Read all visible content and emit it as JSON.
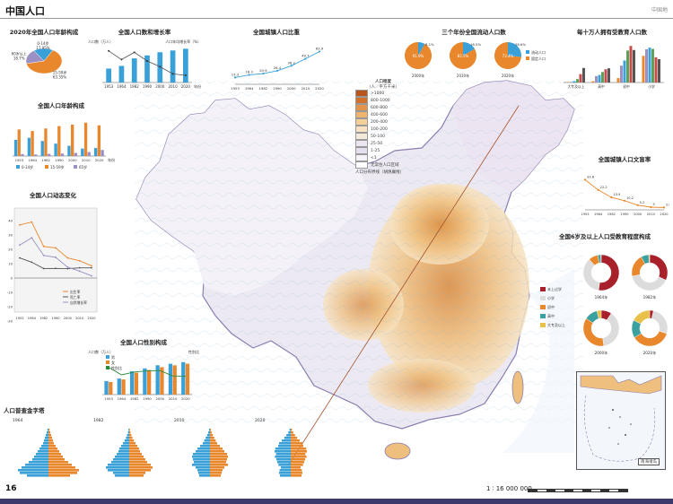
{
  "header": {
    "title": "中国人口",
    "brand": "中国地"
  },
  "footer": {
    "page_number": "16",
    "scale": "1 ∶ 16 000 000"
  },
  "panels": {
    "age_2020": {
      "title": "2020年全国人口年龄构成",
      "labels": [
        "0-14岁",
        "15-59岁",
        "60岁以上"
      ]
    },
    "growth": {
      "title": "全国人口数和增长率",
      "yl": "人口数（万人）",
      "yr": "人口年均增长率（%）",
      "xunit": "年份"
    },
    "urban": {
      "title": "全国城镇人口比重"
    },
    "migrant": {
      "title": "三个年份全国流动人口数",
      "years": [
        "2000年",
        "2010年",
        "2020年"
      ],
      "legend": [
        "流动人口",
        "固定人口"
      ]
    },
    "edu100k": {
      "title": "每十万人拥有受教育人口数",
      "cats": [
        "大专及以上",
        "高中",
        "初中",
        "小学"
      ]
    },
    "age_struct": {
      "title": "全国人口年龄构成",
      "legend": [
        "0-14岁",
        "15-59岁",
        "65岁"
      ],
      "xunit": "年份"
    },
    "dynamics": {
      "title": "全国人口动态变化",
      "legend": [
        "出生率",
        "死亡率",
        "自然增长率"
      ]
    },
    "sex": {
      "title": "全国人口性别构成",
      "yl": "人口数（万人）",
      "yr": "性别比",
      "legend": [
        "男",
        "女",
        "性别比"
      ]
    },
    "pyramid": {
      "title": "人口普查金字塔",
      "years": [
        "1964",
        "1982",
        "2010",
        "2020"
      ]
    },
    "illit": {
      "title": "全国城镇人口文盲率"
    },
    "edu6": {
      "title": "全国6岁及以上人口受教育程度构成",
      "legend": [
        "未上过学",
        "小学",
        "初中",
        "高中",
        "大专及以上"
      ],
      "years": [
        "1964年",
        "1982年",
        "2000年",
        "2020年"
      ]
    },
    "map_legend": {
      "title": "人口密度",
      "unit": "（人／平方千米）",
      "classes": [
        ">1000",
        "800-1000",
        "600-800",
        "400-600",
        "200-400",
        "100-200",
        "50-100",
        "25-50",
        "1-25",
        "<1",
        "无常住人口区域"
      ],
      "line": "人口分布界线（胡焕庸线）"
    },
    "inset": {
      "label": "南海诸岛"
    }
  },
  "chart_data": [
    {
      "type": "pie",
      "title": "2020年全国人口年龄构成",
      "categories": [
        "0-14岁",
        "15-59岁",
        "60岁以上"
      ],
      "values": [
        17.95,
        63.35,
        18.7
      ]
    },
    {
      "type": "bar",
      "title": "全国人口数和增长率",
      "categories": [
        "1953",
        "1964",
        "1982",
        "1990",
        "2000",
        "2010",
        "2020"
      ],
      "series": [
        {
          "name": "人口数",
          "values": [
            58260,
            69458,
            100818,
            113368,
            126583,
            133972,
            141178
          ]
        },
        {
          "name": "年均增长率",
          "values": [
            2.2,
            1.6,
            2.1,
            1.5,
            1.1,
            0.6,
            0.5
          ]
        }
      ]
    },
    {
      "type": "line",
      "title": "全国城镇人口比重",
      "categories": [
        "1953",
        "1964",
        "1982",
        "1990",
        "2000",
        "2010",
        "2020"
      ],
      "values": [
        13.3,
        18.3,
        20.9,
        26.4,
        36.2,
        49.7,
        63.9
      ]
    },
    {
      "type": "pie",
      "title": "三个年份全国流动人口数",
      "categories": [
        "2000年",
        "2010年",
        "2020年"
      ],
      "series": [
        {
          "name": "流动人口",
          "values": [
            8.1,
            16.5,
            26.6
          ]
        },
        {
          "name": "固定人口",
          "values": [
            91.9,
            83.5,
            73.4
          ]
        }
      ]
    },
    {
      "type": "bar",
      "title": "每十万人拥有受教育人口数",
      "categories": [
        "大专及以上",
        "高中",
        "初中",
        "小学"
      ],
      "series": [
        {
          "name": "1964",
          "values": [
            416,
            1319,
            4680,
            28330
          ]
        },
        {
          "name": "1982",
          "values": [
            615,
            6779,
            17892,
            35237
          ]
        },
        {
          "name": "1990",
          "values": [
            1422,
            8039,
            23344,
            37057
          ]
        },
        {
          "name": "2000",
          "values": [
            3611,
            11146,
            33961,
            35701
          ]
        },
        {
          "name": "2010",
          "values": [
            8930,
            14032,
            38788,
            26779
          ]
        },
        {
          "name": "2020",
          "values": [
            15467,
            15088,
            34507,
            24767
          ]
        }
      ]
    },
    {
      "type": "bar",
      "title": "全国人口年龄构成",
      "categories": [
        "1953",
        "1964",
        "1982",
        "1990",
        "2000",
        "2010",
        "2020"
      ],
      "series": [
        {
          "name": "0-14岁",
          "values": [
            36.3,
            40.7,
            33.6,
            27.7,
            22.9,
            16.6,
            17.9
          ]
        },
        {
          "name": "15-59岁",
          "values": [
            59.3,
            55.8,
            61.5,
            66.7,
            70.1,
            74.5,
            68.6
          ]
        },
        {
          "name": "65岁",
          "values": [
            4.4,
            3.5,
            4.9,
            5.6,
            7.0,
            8.9,
            13.5
          ]
        }
      ]
    },
    {
      "type": "line",
      "title": "全国人口动态变化",
      "categories": [
        "1953",
        "1964",
        "1982",
        "1990",
        "2000",
        "2010",
        "2020"
      ],
      "series": [
        {
          "name": "出生率",
          "values": [
            37,
            39,
            22,
            21,
            14,
            12,
            8.5
          ]
        },
        {
          "name": "死亡率",
          "values": [
            14,
            11,
            6.6,
            6.7,
            6.5,
            7.1,
            7.1
          ]
        },
        {
          "name": "自然增长率",
          "values": [
            23,
            28,
            15.7,
            14.4,
            7.6,
            4.8,
            1.5
          ]
        }
      ]
    },
    {
      "type": "bar",
      "title": "全国人口性别构成",
      "categories": [
        "1953",
        "1964",
        "1982",
        "1990",
        "2000",
        "2010",
        "2020"
      ],
      "series": [
        {
          "name": "男",
          "values": [
            30190,
            35652,
            51944,
            58495,
            65355,
            68685,
            72334
          ]
        },
        {
          "name": "女",
          "values": [
            28070,
            33806,
            48874,
            54873,
            61228,
            65287,
            68844
          ]
        },
        {
          "name": "性别比",
          "values": [
            107.6,
            105.5,
            106.3,
            106.6,
            106.7,
            105.2,
            105.1
          ]
        }
      ]
    },
    {
      "type": "line",
      "title": "全国城镇人口文盲率",
      "categories": [
        "1953",
        "1964",
        "1982",
        "1990",
        "2000",
        "2010",
        "2020"
      ],
      "values": [
        33.6,
        22.2,
        13.9,
        10.2,
        5.2,
        3.0,
        2.6
      ]
    },
    {
      "type": "pie",
      "title": "全国6岁及以上人口受教育程度构成",
      "categories": [
        "未上过学",
        "小学",
        "初中",
        "高中",
        "大专及以上"
      ],
      "series": [
        {
          "name": "1964年",
          "values": [
            52.4,
            35.9,
            8.6,
            2.7,
            0.4
          ]
        },
        {
          "name": "1982年",
          "values": [
            31.9,
            39.9,
            20.4,
            7.0,
            0.8
          ]
        },
        {
          "name": "2000年",
          "values": [
            9.5,
            38.2,
            36.5,
            11.9,
            3.9
          ]
        },
        {
          "name": "2020年",
          "values": [
            3.4,
            26.4,
            36.5,
            16.1,
            17.6
          ]
        }
      ]
    }
  ]
}
